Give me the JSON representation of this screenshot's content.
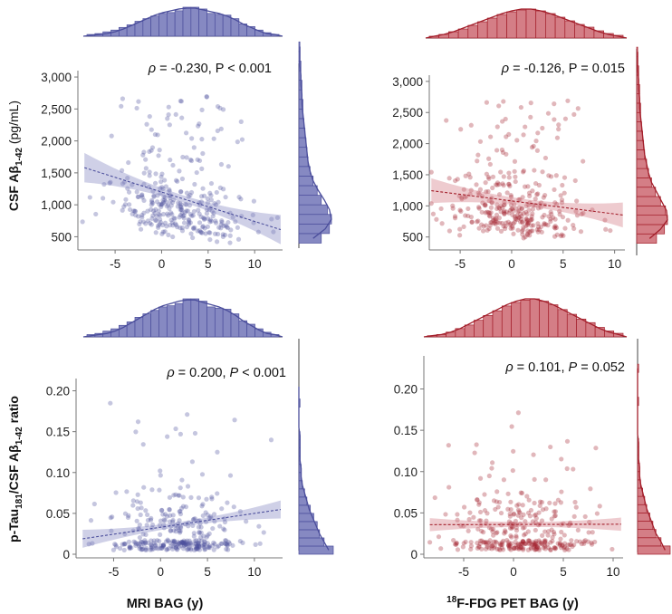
{
  "labels": {
    "row1_ylabel_pre": "CSF Aβ",
    "row1_ylabel_sub": "1-42",
    "row1_ylabel_post": " (pg/mL)",
    "row2_ylabel_a": "p-Tau",
    "row2_ylabel_sub1": "181",
    "row2_ylabel_b": "/CSF Aβ",
    "row2_ylabel_sub2": "1-42",
    "row2_ylabel_c": " ratio",
    "col1_xlabel": "MRI BAG (y)",
    "col2_xlabel_sup": "18",
    "col2_xlabel_main": "F-FDG PET BAG (y)"
  },
  "colors": {
    "blue": "#4b4e9c",
    "blue_fill": "#8689c2",
    "red": "#a31e2a",
    "red_fill": "#d47e86"
  },
  "chart_data": [
    {
      "id": "p11",
      "type": "scatter",
      "x_label": "MRI BAG (y)",
      "y_label": "CSF Aβ1-42 (pg/mL)",
      "xlim": [
        -9,
        13
      ],
      "ylim": [
        350,
        3100
      ],
      "xticks": [
        -5,
        0,
        5,
        10
      ],
      "xtick_labels": [
        "-5",
        "0",
        "5",
        "10"
      ],
      "yticks": [
        500,
        1000,
        1500,
        2000,
        2500,
        3000
      ],
      "ytick_labels": [
        "500",
        "1,000",
        "1,500",
        "2,000",
        "2,500",
        "3,000"
      ],
      "annotation": {
        "rho_symbol": "ρ",
        "rho_text": " = -0.230, P < 0.001"
      },
      "regression": {
        "slope": -46,
        "intercept": 1200,
        "x_range": [
          -8.3,
          12.8
        ],
        "ci_half_width_ends": 230,
        "ci_half_width_center": 55
      },
      "point_cloud": {
        "n": 330,
        "seed": 11,
        "x_mean": 2.0,
        "x_sd": 3.6,
        "y_mode": "abeta",
        "x_range": [
          -8.5,
          12.8
        ]
      },
      "marginal_x": {
        "bins_start": -8,
        "bins_step": 1,
        "counts": [
          2,
          3,
          5,
          7,
          10,
          13,
          17,
          20,
          23,
          26,
          27,
          29,
          33,
          33,
          31,
          26,
          25,
          24,
          20,
          14,
          11,
          7,
          4,
          2
        ],
        "kde": [
          1,
          2,
          3,
          5,
          8,
          12,
          16,
          20,
          24,
          27,
          29,
          31,
          32,
          32,
          30,
          28,
          26,
          23,
          19,
          14,
          10,
          6,
          3,
          2
        ]
      },
      "marginal_y": {
        "bins_start": 400,
        "bins_step": 150,
        "counts": [
          22,
          30,
          32,
          28,
          22,
          18,
          14,
          11,
          9,
          8,
          7,
          6,
          5,
          4,
          4,
          3,
          3,
          2,
          2,
          1,
          1
        ],
        "kde": [
          14,
          26,
          32,
          30,
          25,
          19,
          14,
          11,
          9,
          8,
          7,
          6,
          5,
          4,
          3,
          3,
          2,
          2,
          1,
          1,
          1
        ]
      }
    },
    {
      "id": "p12",
      "type": "scatter",
      "x_label": "18F-FDG PET BAG (y)",
      "y_label": "CSF Aβ1-42 (pg/mL)",
      "xlim": [
        -8,
        11
      ],
      "ylim": [
        350,
        3100
      ],
      "xticks": [
        -5,
        0,
        5,
        10
      ],
      "xtick_labels": [
        "-5",
        "0",
        "5",
        "10"
      ],
      "yticks": [
        500,
        1000,
        1500,
        2000,
        2500,
        3000
      ],
      "ytick_labels": [
        "500",
        "1,000",
        "1,500",
        "2,000",
        "2,500",
        "3,000"
      ],
      "annotation": {
        "rho_symbol": "ρ",
        "rho_text": " = -0.126, P = 0.015"
      },
      "regression": {
        "slope": -21,
        "intercept": 1080,
        "x_range": [
          -7.8,
          10.8
        ],
        "ci_half_width_ends": 200,
        "ci_half_width_center": 55
      },
      "point_cloud": {
        "n": 340,
        "seed": 12,
        "x_mean": 0.5,
        "x_sd": 3.3,
        "y_mode": "abeta",
        "x_range": [
          -7.8,
          10.8
        ]
      },
      "marginal_x": {
        "bins_start": -8,
        "bins_step": 1,
        "counts": [
          2,
          4,
          7,
          10,
          14,
          18,
          22,
          26,
          29,
          31,
          32,
          30,
          27,
          23,
          19,
          15,
          12,
          8,
          5,
          3
        ],
        "kde": [
          2,
          4,
          7,
          11,
          15,
          19,
          23,
          27,
          30,
          32,
          32,
          30,
          27,
          23,
          19,
          15,
          11,
          7,
          4,
          2
        ]
      },
      "marginal_y": {
        "bins_start": 400,
        "bins_step": 150,
        "counts": [
          20,
          28,
          31,
          29,
          24,
          19,
          15,
          12,
          10,
          8,
          7,
          6,
          5,
          4,
          4,
          3,
          3,
          2,
          2,
          1,
          1
        ],
        "kde": [
          13,
          24,
          31,
          30,
          25,
          20,
          15,
          12,
          10,
          8,
          7,
          6,
          5,
          4,
          3,
          3,
          2,
          2,
          1,
          1,
          1
        ]
      }
    },
    {
      "id": "p21",
      "type": "scatter",
      "x_label": "MRI BAG (y)",
      "y_label": "p-Tau181/CSF Aβ1-42 ratio",
      "xlim": [
        -9,
        13
      ],
      "ylim": [
        0,
        0.215
      ],
      "xticks": [
        -5,
        0,
        5,
        10
      ],
      "xtick_labels": [
        "-5",
        "0",
        "5",
        "10"
      ],
      "yticks": [
        0,
        0.05,
        0.1,
        0.15,
        0.2
      ],
      "ytick_labels": [
        "0",
        "0.05",
        "0.10",
        "0.15",
        "0.20"
      ],
      "annotation": {
        "rho_symbol": "ρ",
        "rho_text": " = 0.200, ",
        "p_symbol": "P",
        "p_text": " < 0.001"
      },
      "regression": {
        "slope": 0.0017,
        "intercept": 0.033,
        "x_range": [
          -8.3,
          12.8
        ],
        "ci_half_width_ends": 0.011,
        "ci_half_width_center": 0.003
      },
      "point_cloud": {
        "n": 340,
        "seed": 21,
        "x_mean": 2.0,
        "x_sd": 3.6,
        "y_mode": "ratio",
        "x_range": [
          -8.5,
          12.8
        ]
      },
      "marginal_x": {
        "bins_start": -8,
        "bins_step": 1,
        "counts": [
          2,
          3,
          5,
          7,
          10,
          13,
          17,
          20,
          23,
          26,
          27,
          29,
          33,
          33,
          31,
          26,
          25,
          24,
          20,
          14,
          11,
          7,
          4,
          2
        ],
        "kde": [
          1,
          2,
          3,
          5,
          8,
          12,
          16,
          20,
          24,
          27,
          29,
          31,
          32,
          32,
          30,
          28,
          26,
          23,
          19,
          14,
          10,
          6,
          3,
          2
        ]
      },
      "marginal_y": {
        "bins_start": 0,
        "bins_step": 0.01,
        "counts": [
          30,
          22,
          18,
          16,
          13,
          10,
          7,
          5,
          3,
          2,
          2,
          1,
          1,
          1,
          1,
          0,
          0,
          0,
          1,
          0,
          0
        ],
        "kde": [
          26,
          22,
          18,
          15,
          12,
          9,
          7,
          5,
          3,
          2,
          2,
          1,
          1,
          1,
          1,
          0,
          0,
          0,
          0,
          0,
          0
        ]
      }
    },
    {
      "id": "p22",
      "type": "scatter",
      "x_label": "18F-FDG PET BAG (y)",
      "y_label": "p-Tau181/CSF Aβ1-42 ratio",
      "xlim": [
        -9,
        11
      ],
      "ylim": [
        0,
        0.24
      ],
      "xticks": [
        -5,
        0,
        5,
        10
      ],
      "xtick_labels": [
        "-5",
        "0",
        "5",
        "10"
      ],
      "yticks": [
        0,
        0.05,
        0.1,
        0.15,
        0.2
      ],
      "ytick_labels": [
        "0",
        "0.05",
        "0.10",
        "0.15",
        "0.20"
      ],
      "annotation": {
        "rho_symbol": "ρ",
        "rho_text": " = 0.101, ",
        "p_symbol": "P",
        "p_text": " = 0.052"
      },
      "regression": {
        "slope": 3e-05,
        "intercept": 0.036,
        "x_range": [
          -8.4,
          10.8
        ],
        "ci_half_width_ends": 0.008,
        "ci_half_width_center": 0.003
      },
      "point_cloud": {
        "n": 340,
        "seed": 22,
        "x_mean": 0.5,
        "x_sd": 3.3,
        "y_mode": "ratio",
        "x_range": [
          -8.4,
          10.8
        ]
      },
      "marginal_x": {
        "bins_start": -9,
        "bins_step": 1,
        "counts": [
          1,
          2,
          4,
          7,
          10,
          14,
          18,
          22,
          26,
          29,
          31,
          32,
          30,
          27,
          23,
          19,
          15,
          12,
          8,
          5,
          3
        ],
        "kde": [
          1,
          2,
          4,
          7,
          11,
          15,
          19,
          23,
          27,
          30,
          32,
          32,
          30,
          27,
          23,
          19,
          15,
          11,
          7,
          4,
          2
        ]
      },
      "marginal_y": {
        "bins_start": 0,
        "bins_step": 0.01,
        "counts": [
          32,
          23,
          18,
          15,
          12,
          9,
          7,
          5,
          3,
          2,
          2,
          1,
          1,
          1,
          0,
          0,
          0,
          0,
          1,
          0,
          0,
          0,
          1
        ],
        "kde": [
          27,
          23,
          18,
          15,
          12,
          9,
          7,
          5,
          3,
          2,
          2,
          1,
          1,
          1,
          0,
          0,
          0,
          0,
          0,
          0,
          0,
          0,
          0
        ]
      }
    }
  ]
}
